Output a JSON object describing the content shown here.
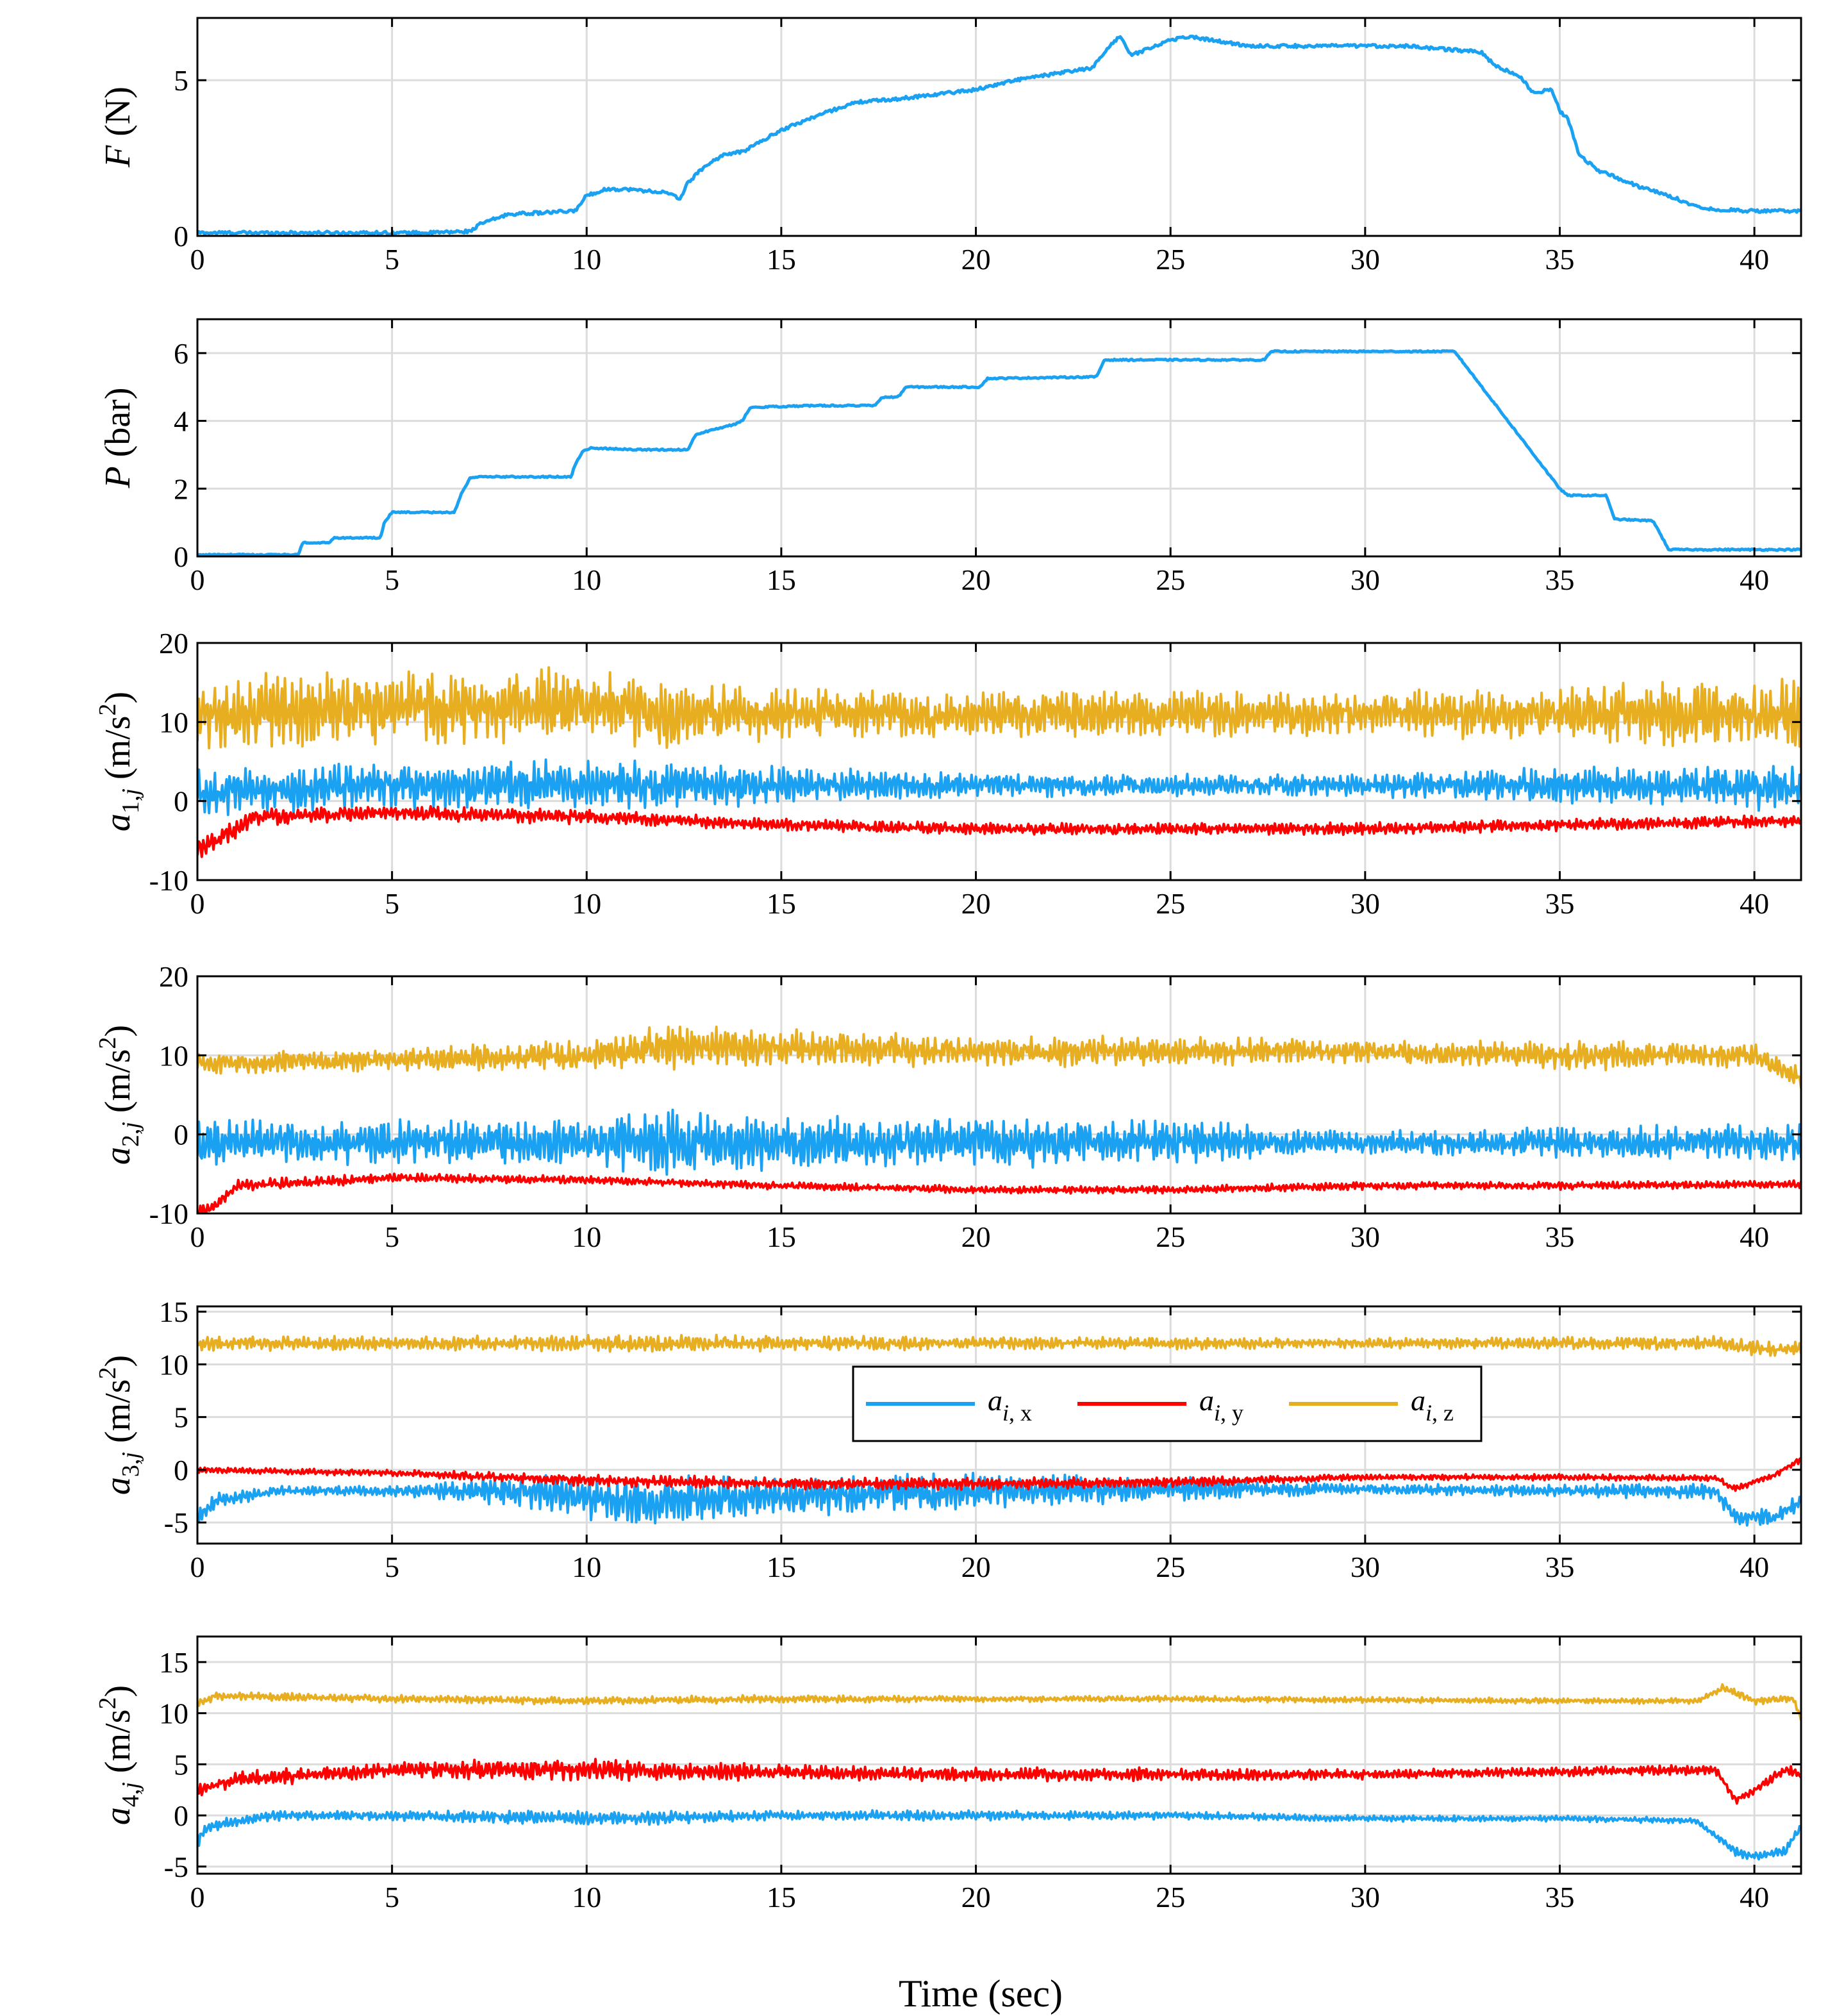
{
  "figure": {
    "xlabel": "Time (sec)"
  },
  "chart_data": [
    {
      "type": "line",
      "ylabel": {
        "symbol": "F",
        "unit": " (N)"
      },
      "xlim": [
        0,
        41.2
      ],
      "ylim": [
        0,
        7
      ],
      "xticks": [
        "0",
        "5",
        "10",
        "15",
        "20",
        "25",
        "30",
        "35",
        "40"
      ],
      "yticks": [
        "0",
        "5"
      ],
      "series": [
        {
          "name": "F",
          "color": "#1ba1f2",
          "x": [
            0,
            3,
            6,
            7,
            7.3,
            8,
            9,
            9.7,
            10,
            10.5,
            11,
            12,
            12.4,
            12.6,
            13,
            13.5,
            14,
            15,
            16,
            16.7,
            17,
            18,
            20,
            21,
            22,
            23,
            23.5,
            23.7,
            24,
            25,
            25.5,
            26,
            27,
            30,
            31,
            33,
            33.3,
            34,
            34.3,
            34.8,
            35,
            35.2,
            35.5,
            36,
            37,
            38,
            38.5,
            39,
            40,
            41.2
          ],
          "y": [
            0.1,
            0.1,
            0.1,
            0.15,
            0.4,
            0.7,
            0.75,
            0.8,
            1.3,
            1.5,
            1.5,
            1.4,
            1.2,
            1.7,
            2.2,
            2.6,
            2.7,
            3.4,
            3.9,
            4.2,
            4.3,
            4.4,
            4.7,
            5.0,
            5.2,
            5.4,
            6.2,
            6.4,
            5.8,
            6.3,
            6.4,
            6.3,
            6.1,
            6.1,
            6.1,
            5.9,
            5.5,
            5.1,
            4.6,
            4.7,
            4.0,
            3.8,
            2.6,
            2.1,
            1.6,
            1.2,
            0.95,
            0.85,
            0.8,
            0.8
          ],
          "noise": 0.05
        }
      ]
    },
    {
      "type": "line",
      "ylabel": {
        "symbol": "P",
        "unit": " (bar)"
      },
      "xlim": [
        0,
        41.2
      ],
      "ylim": [
        0,
        7
      ],
      "xticks": [
        "0",
        "5",
        "10",
        "15",
        "20",
        "25",
        "30",
        "35",
        "40"
      ],
      "yticks": [
        "0",
        "2",
        "4",
        "6"
      ],
      "series": [
        {
          "name": "P",
          "color": "#1ba1f2",
          "x": [
            0,
            2.6,
            2.7,
            3.4,
            3.5,
            4.7,
            4.8,
            5.0,
            5.2,
            6.6,
            6.8,
            7.0,
            7.3,
            9.6,
            9.7,
            9.9,
            10.1,
            11.3,
            11.5,
            12.6,
            12.8,
            13.8,
            14.0,
            14.2,
            15.8,
            16.0,
            17.4,
            17.6,
            18.0,
            18.2,
            20.1,
            20.3,
            23.1,
            23.3,
            27.4,
            27.6,
            32.3,
            35.0,
            35.2,
            36.2,
            36.4,
            37.4,
            37.8,
            41.2
          ],
          "y": [
            0.05,
            0.05,
            0.4,
            0.4,
            0.55,
            0.55,
            1.0,
            1.3,
            1.3,
            1.3,
            1.9,
            2.3,
            2.35,
            2.35,
            2.7,
            3.1,
            3.2,
            3.15,
            3.15,
            3.15,
            3.6,
            3.9,
            4.0,
            4.4,
            4.45,
            4.45,
            4.45,
            4.7,
            4.7,
            5.0,
            5.0,
            5.25,
            5.3,
            5.8,
            5.8,
            6.05,
            6.05,
            2.0,
            1.8,
            1.8,
            1.1,
            1.05,
            0.2,
            0.2
          ],
          "noise": 0.02
        }
      ]
    },
    {
      "type": "line",
      "ylabel": {
        "symbol": "a",
        "sub": "1,",
        "subit": "j",
        "unit": " (m/s",
        "sup": "2",
        "close": ")"
      },
      "xlim": [
        0,
        41.2
      ],
      "ylim": [
        -10,
        20
      ],
      "xticks": [
        "0",
        "5",
        "10",
        "15",
        "20",
        "25",
        "30",
        "35",
        "40"
      ],
      "yticks": [
        "-10",
        "0",
        "10",
        "20"
      ],
      "series": [
        {
          "name": "a_i,z",
          "color": "#e8ae22",
          "x": [
            0,
            5,
            10,
            12,
            15,
            20,
            25,
            30,
            35,
            38,
            41.2
          ],
          "y": [
            11,
            12,
            12,
            11,
            11,
            11,
            11,
            11,
            11,
            11,
            11
          ],
          "amp": [
            5,
            5,
            5,
            4.5,
            3.5,
            3,
            3,
            3,
            3.5,
            4.5,
            4.5
          ]
        },
        {
          "name": "a_i,x",
          "color": "#1ba1f2",
          "x": [
            0,
            5,
            10,
            15,
            20,
            25,
            30,
            35,
            41.2
          ],
          "y": [
            1,
            2,
            2,
            2,
            2,
            2,
            2,
            2,
            1.5
          ],
          "amp": [
            3,
            3,
            3.5,
            2.5,
            1.5,
            1.5,
            1.5,
            2.5,
            3
          ]
        },
        {
          "name": "a_i,y",
          "color": "#ff0000",
          "x": [
            0,
            0.5,
            1.5,
            5,
            10,
            15,
            20,
            25,
            30,
            35,
            41.2
          ],
          "y": [
            -6,
            -5,
            -2,
            -1.5,
            -2,
            -3,
            -3.5,
            -3.5,
            -3.5,
            -3,
            -2.5
          ],
          "amp": [
            1.5,
            1.5,
            1.2,
            1,
            1,
            0.8,
            0.8,
            0.8,
            0.8,
            0.8,
            0.8
          ]
        }
      ]
    },
    {
      "type": "line",
      "ylabel": {
        "symbol": "a",
        "sub": "2,",
        "subit": "j",
        "unit": " (m/s",
        "sup": "2",
        "close": ")"
      },
      "xlim": [
        0,
        41.2
      ],
      "ylim": [
        -10,
        20
      ],
      "xticks": [
        "0",
        "5",
        "10",
        "15",
        "20",
        "25",
        "30",
        "35",
        "40"
      ],
      "yticks": [
        "-10",
        "0",
        "10",
        "20"
      ],
      "series": [
        {
          "name": "a_i,z",
          "color": "#e8ae22",
          "x": [
            0,
            5,
            10,
            12,
            15,
            20,
            25,
            30,
            35,
            40,
            41.2
          ],
          "y": [
            9,
            9.5,
            10,
            11,
            11,
            10.5,
            10.5,
            10.5,
            10,
            10,
            7
          ],
          "amp": [
            1.5,
            1.5,
            2,
            3,
            2.5,
            2,
            2,
            1.5,
            2,
            1.5,
            1.5
          ]
        },
        {
          "name": "a_i,x",
          "color": "#1ba1f2",
          "x": [
            0,
            5,
            10,
            12,
            15,
            20,
            25,
            30,
            35,
            40,
            41.2
          ],
          "y": [
            -1,
            -1,
            -1,
            -1,
            -1,
            -1,
            -1,
            -1,
            -1,
            -1,
            -1
          ],
          "amp": [
            3,
            3,
            3,
            4.5,
            3.5,
            3.5,
            3,
            1.5,
            2,
            2.5,
            2.5
          ]
        },
        {
          "name": "a_i,y",
          "color": "#ff0000",
          "x": [
            0,
            0.5,
            1,
            5,
            10,
            15,
            20,
            25,
            30,
            35,
            41.2
          ],
          "y": [
            -10,
            -9,
            -6.5,
            -5.5,
            -5.8,
            -6.5,
            -7,
            -7,
            -6.5,
            -6.5,
            -6.3
          ],
          "amp": [
            1,
            1,
            0.8,
            0.6,
            0.6,
            0.5,
            0.5,
            0.5,
            0.5,
            0.5,
            0.5
          ]
        }
      ]
    },
    {
      "type": "line",
      "ylabel": {
        "symbol": "a",
        "sub": "3,",
        "subit": "j",
        "unit": " (m/s",
        "sup": "2",
        "close": ")"
      },
      "xlim": [
        0,
        41.2
      ],
      "ylim": [
        -7,
        15.5
      ],
      "xticks": [
        "0",
        "5",
        "10",
        "15",
        "20",
        "25",
        "30",
        "35",
        "40"
      ],
      "yticks": [
        "-5",
        "0",
        "5",
        "10",
        "15"
      ],
      "series": [
        {
          "name": "a_i,z",
          "color": "#e8ae22",
          "x": [
            0,
            5,
            10,
            15,
            20,
            25,
            30,
            35,
            39,
            40,
            41.2
          ],
          "y": [
            12,
            12,
            12,
            12,
            12,
            12,
            12,
            12,
            12,
            11.5,
            11.5
          ],
          "amp": [
            0.7,
            0.7,
            0.8,
            0.8,
            0.6,
            0.6,
            0.5,
            0.6,
            0.7,
            0.8,
            0.8
          ]
        },
        {
          "name": "a_i,x",
          "color": "#1ba1f2",
          "x": [
            0,
            0.5,
            2,
            5,
            8,
            11,
            15,
            20,
            25,
            30,
            35,
            39,
            39.5,
            40.5,
            41.2
          ],
          "y": [
            -4.5,
            -3,
            -2,
            -2,
            -2,
            -3,
            -2.5,
            -2,
            -1.8,
            -1.8,
            -2,
            -2,
            -4.5,
            -4.5,
            -3
          ],
          "amp": [
            1,
            0.8,
            0.5,
            0.5,
            1.5,
            2.5,
            2,
            1.8,
            1.2,
            0.5,
            0.6,
            0.8,
            0.8,
            0.8,
            0.8
          ]
        },
        {
          "name": "a_i,y",
          "color": "#ff0000",
          "x": [
            0,
            5,
            10,
            15,
            20,
            25,
            30,
            35,
            39,
            39.5,
            40.5,
            41.2
          ],
          "y": [
            0,
            -0.3,
            -1,
            -1.3,
            -1.3,
            -1.2,
            -0.7,
            -0.7,
            -0.8,
            -1.8,
            -0.5,
            1
          ],
          "amp": [
            0.3,
            0.3,
            0.6,
            0.6,
            0.6,
            0.5,
            0.3,
            0.3,
            0.3,
            0.3,
            0.3,
            0.3
          ]
        }
      ]
    },
    {
      "type": "line",
      "ylabel": {
        "symbol": "a",
        "sub": "4,",
        "subit": "j",
        "unit": " (m/s",
        "sup": "2",
        "close": ")"
      },
      "xlim": [
        0,
        41.2
      ],
      "ylim": [
        -5.7,
        17.5
      ],
      "xticks": [
        "0",
        "5",
        "10",
        "15",
        "20",
        "25",
        "30",
        "35",
        "40"
      ],
      "yticks": [
        "-5",
        "0",
        "5",
        "10",
        "15"
      ],
      "series": [
        {
          "name": "a_i,z",
          "color": "#e8ae22",
          "x": [
            0,
            0.5,
            5,
            10,
            15,
            20,
            25,
            30,
            35,
            38.5,
            39.2,
            40,
            41,
            41.2
          ],
          "y": [
            11,
            11.7,
            11.4,
            11.2,
            11.4,
            11.4,
            11.4,
            11.3,
            11.2,
            11.2,
            12.5,
            11.2,
            11.5,
            9.5
          ],
          "amp": [
            0.4,
            0.4,
            0.4,
            0.4,
            0.4,
            0.3,
            0.3,
            0.3,
            0.3,
            0.3,
            0.4,
            0.4,
            0.4,
            0.4
          ]
        },
        {
          "name": "a_i,y",
          "color": "#ff0000",
          "x": [
            0,
            1,
            5,
            10,
            15,
            20,
            25,
            30,
            35,
            39,
            39.5,
            40,
            40.8,
            41.2
          ],
          "y": [
            2.5,
            3.5,
            4.5,
            4.5,
            4.2,
            4,
            4,
            4,
            4.3,
            4.5,
            1.5,
            2.5,
            4.5,
            4
          ],
          "amp": [
            0.8,
            0.8,
            0.8,
            1.2,
            0.8,
            0.7,
            0.7,
            0.5,
            0.5,
            0.5,
            0.5,
            0.5,
            0.5,
            0.5
          ]
        },
        {
          "name": "a_i,x",
          "color": "#1ba1f2",
          "x": [
            0,
            0.3,
            2,
            5,
            10,
            15,
            20,
            25,
            30,
            35,
            38.5,
            39.5,
            40,
            40.8,
            41.2
          ],
          "y": [
            -2.5,
            -1,
            0,
            0,
            -0.3,
            0,
            0,
            0,
            -0.3,
            -0.3,
            -0.5,
            -3.5,
            -4,
            -3.5,
            -1
          ],
          "amp": [
            0.8,
            0.6,
            0.5,
            0.5,
            0.8,
            0.5,
            0.5,
            0.4,
            0.3,
            0.3,
            0.3,
            0.5,
            0.5,
            0.5,
            0.5
          ]
        }
      ]
    }
  ],
  "legend": {
    "entries": [
      {
        "color": "#1ba1f2",
        "base": "a",
        "sub_it": "i",
        "sub_rest": ", x"
      },
      {
        "color": "#ff0000",
        "base": "a",
        "sub_it": "i",
        "sub_rest": ", y"
      },
      {
        "color": "#e8ae22",
        "base": "a",
        "sub_it": "i",
        "sub_rest": ", z"
      }
    ]
  }
}
